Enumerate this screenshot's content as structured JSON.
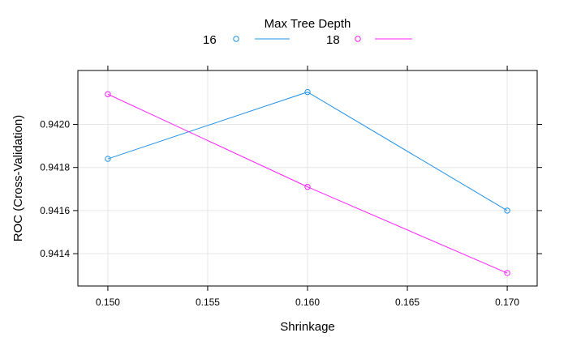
{
  "chart_data": {
    "type": "line",
    "xlabel": "Shrinkage",
    "ylabel": "ROC (Cross-Validation)",
    "legend_title": "Max Tree Depth",
    "legend_position": "top",
    "grid": true,
    "xlim": [
      0.1485,
      0.1715
    ],
    "ylim": [
      0.94125,
      0.94225
    ],
    "x_ticks": [
      "0.150",
      "0.155",
      "0.160",
      "0.165",
      "0.170"
    ],
    "y_ticks": [
      "0.9414",
      "0.9416",
      "0.9418",
      "0.9420"
    ],
    "x": [
      0.15,
      0.16,
      0.17
    ],
    "series": [
      {
        "name": "16",
        "color": "#1E90E8",
        "values": [
          0.94184,
          0.94215,
          0.9416
        ]
      },
      {
        "name": "18",
        "color": "#FF1FFF",
        "values": [
          0.94214,
          0.94171,
          0.94131
        ]
      }
    ]
  }
}
